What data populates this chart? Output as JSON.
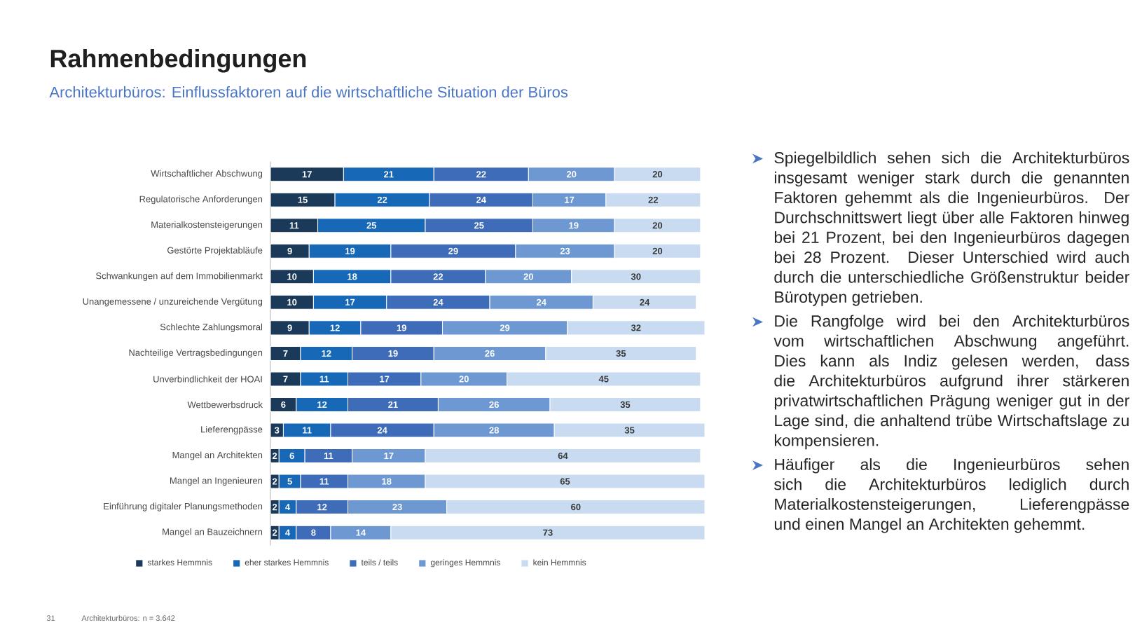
{
  "chart_data": {
    "type": "bar",
    "orientation": "horizontal",
    "stacked": true,
    "title": "Rahmenbedingungen",
    "subtitle": "Architekturbüros: Einflussfaktoren auf die wirtschaftliche Situation der Büros",
    "categories": [
      "Wirtschaftlicher Abschwung",
      "Regulatorische Anforderungen",
      "Materialkostensteigerungen",
      "Gestörte Projektabläufe",
      "Schwankungen auf dem Immobilienmarkt",
      "Unangemessene / unzureichende Vergütung",
      "Schlechte Zahlungsmoral",
      "Nachteilige Vertragsbedingungen",
      "Unverbindlichkeit der HOAI",
      "Wettbewerbsdruck",
      "Lieferengpässe",
      "Mangel an Architekten",
      "Mangel an Ingenieuren",
      "Einführung digitaler Planungsmethoden",
      "Mangel an Bauzeichnern"
    ],
    "series": [
      {
        "name": "starkes Hemmnis",
        "color": "#1b3a5a",
        "values": [
          17,
          15,
          11,
          9,
          10,
          10,
          9,
          7,
          7,
          6,
          3,
          2,
          2,
          2,
          2
        ]
      },
      {
        "name": "eher starkes Hemmnis",
        "color": "#1769b8",
        "values": [
          21,
          22,
          25,
          19,
          18,
          17,
          12,
          12,
          11,
          12,
          11,
          6,
          5,
          4,
          4
        ]
      },
      {
        "name": "teils / teils",
        "color": "#3f6cb8",
        "values": [
          22,
          24,
          25,
          29,
          22,
          24,
          19,
          19,
          17,
          21,
          24,
          11,
          11,
          12,
          8
        ]
      },
      {
        "name": "geringes Hemmnis",
        "color": "#6d98d1",
        "values": [
          20,
          17,
          19,
          23,
          20,
          24,
          29,
          26,
          20,
          26,
          28,
          17,
          18,
          23,
          14
        ]
      },
      {
        "name": "kein Hemmnis",
        "color": "#c8dbf1",
        "values": [
          20,
          22,
          20,
          20,
          30,
          24,
          32,
          35,
          45,
          35,
          35,
          64,
          65,
          60,
          73
        ]
      }
    ],
    "data_labels": true,
    "legend": "bottom",
    "tick_labels": "y",
    "annotations": [
      "Spiegelbildlich sehen sich die Architekturbüros insgesamt weniger stark durch die genannten Faktoren gehemmt als die Ingenieurbüros. Der Durchschnittswert liegt über alle Faktoren hinweg bei 21 Prozent, bei den Ingenieurbüros dagegen bei 28 Prozent. Dieser Unterschied wird auch durch die unterschiedliche Größenstruktur beider Bürotypen getrieben.",
      "Die Rangfolge wird bei den Architekturbüros vom wirtschaftlichen Abschwung angeführt. Dies kann als Indiz gelesen werden, dass die Architekturbüros aufgrund ihrer stärkeren privatwirtschaftlichen Prägung weniger gut in der Lage sind, die anhaltend trübe Wirtschaftslage zu kompensieren.",
      "Häufiger als die Ingenieurbüros sehen sich die Architekturbüros lediglich durch Materialkostensteigerungen, Lieferengpässe und einen Mangel an Architekten gehemmt.",
      "31",
      "Architekturbüros: n = 3.642"
    ]
  }
}
